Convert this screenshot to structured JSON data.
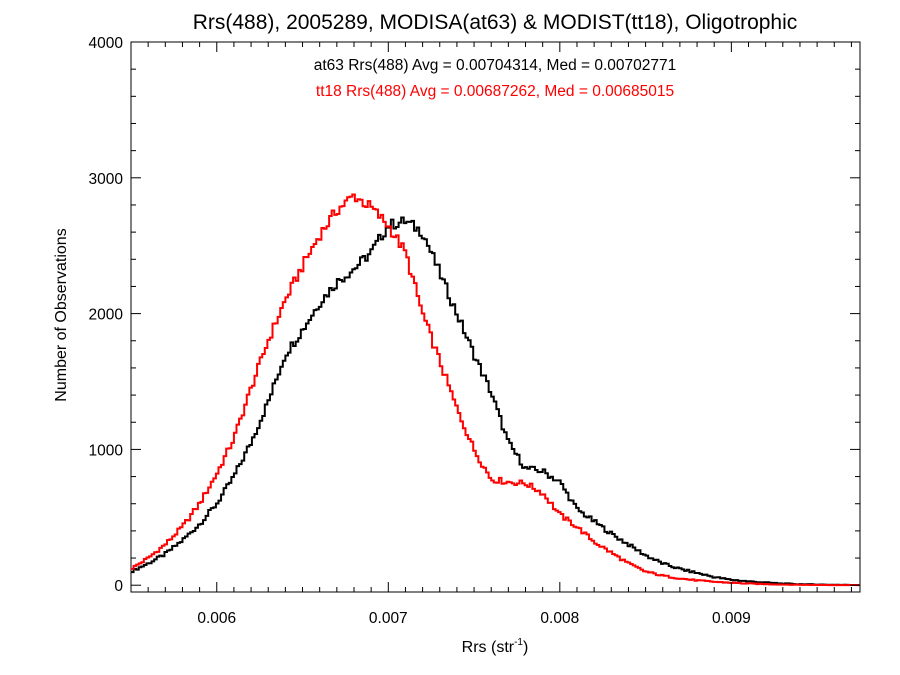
{
  "chart_data": {
    "type": "line",
    "style": "step-histogram",
    "title": "Rrs(488), 2005289, MODISA(at63) & MODIST(tt18), Oligotrophic",
    "xlabel": "Rrs (str",
    "xlabel_sup": "-1",
    "xlabel_end": ")",
    "ylabel": "Number of Observations",
    "xlim": [
      0.0055,
      0.00975
    ],
    "ylim": [
      -50,
      4000
    ],
    "x_ticks": [
      0.006,
      0.007,
      0.008,
      0.009
    ],
    "x_tick_labels": [
      "0.006",
      "0.007",
      "0.008",
      "0.009"
    ],
    "y_ticks": [
      0,
      1000,
      2000,
      3000,
      4000
    ],
    "y_tick_labels": [
      "0",
      "1000",
      "2000",
      "3000",
      "4000"
    ],
    "grid": false,
    "annotations": [
      {
        "text": "at63 Rrs(488) Avg = 0.00704314, Med = 0.00702771",
        "color": "#000000"
      },
      {
        "text": "tt18 Rrs(488) Avg = 0.00687262, Med = 0.00685015",
        "color": "#ff0000"
      }
    ],
    "series": [
      {
        "color": "#000000",
        "points": [
          [
            0.0055,
            100
          ],
          [
            0.0056,
            160
          ],
          [
            0.0057,
            230
          ],
          [
            0.0058,
            330
          ],
          [
            0.0059,
            450
          ],
          [
            0.006,
            600
          ],
          [
            0.0061,
            800
          ],
          [
            0.0062,
            1050
          ],
          [
            0.0063,
            1350
          ],
          [
            0.0064,
            1700
          ],
          [
            0.0065,
            1880
          ],
          [
            0.0066,
            2080
          ],
          [
            0.0067,
            2230
          ],
          [
            0.0068,
            2330
          ],
          [
            0.0069,
            2450
          ],
          [
            0.007,
            2650
          ],
          [
            0.0071,
            2680
          ],
          [
            0.0072,
            2600
          ],
          [
            0.0073,
            2300
          ],
          [
            0.0074,
            2000
          ],
          [
            0.0075,
            1700
          ],
          [
            0.0076,
            1420
          ],
          [
            0.0077,
            1050
          ],
          [
            0.0078,
            860
          ],
          [
            0.0079,
            840
          ],
          [
            0.008,
            760
          ],
          [
            0.0081,
            560
          ],
          [
            0.0082,
            470
          ],
          [
            0.0083,
            380
          ],
          [
            0.0084,
            300
          ],
          [
            0.0085,
            220
          ],
          [
            0.0086,
            160
          ],
          [
            0.0087,
            120
          ],
          [
            0.0088,
            90
          ],
          [
            0.0089,
            60
          ],
          [
            0.009,
            40
          ],
          [
            0.0091,
            28
          ],
          [
            0.0092,
            20
          ],
          [
            0.0093,
            12
          ],
          [
            0.0094,
            8
          ],
          [
            0.0095,
            5
          ],
          [
            0.0096,
            3
          ],
          [
            0.00975,
            2
          ]
        ]
      },
      {
        "color": "#ff0000",
        "points": [
          [
            0.0055,
            120
          ],
          [
            0.0056,
            200
          ],
          [
            0.0057,
            300
          ],
          [
            0.0058,
            430
          ],
          [
            0.0059,
            600
          ],
          [
            0.006,
            820
          ],
          [
            0.0061,
            1080
          ],
          [
            0.0062,
            1450
          ],
          [
            0.0063,
            1800
          ],
          [
            0.0064,
            2100
          ],
          [
            0.0065,
            2350
          ],
          [
            0.0066,
            2580
          ],
          [
            0.0067,
            2760
          ],
          [
            0.0068,
            2870
          ],
          [
            0.0069,
            2780
          ],
          [
            0.007,
            2650
          ],
          [
            0.0071,
            2450
          ],
          [
            0.0072,
            2000
          ],
          [
            0.0073,
            1650
          ],
          [
            0.0074,
            1300
          ],
          [
            0.0075,
            1000
          ],
          [
            0.0076,
            780
          ],
          [
            0.0077,
            760
          ],
          [
            0.0078,
            750
          ],
          [
            0.0079,
            680
          ],
          [
            0.008,
            520
          ],
          [
            0.0081,
            430
          ],
          [
            0.0082,
            320
          ],
          [
            0.0083,
            240
          ],
          [
            0.0084,
            160
          ],
          [
            0.0085,
            100
          ],
          [
            0.0086,
            70
          ],
          [
            0.0087,
            50
          ],
          [
            0.0088,
            35
          ],
          [
            0.0089,
            25
          ],
          [
            0.009,
            18
          ],
          [
            0.0091,
            12
          ],
          [
            0.0092,
            8
          ],
          [
            0.0093,
            5
          ],
          [
            0.0094,
            3
          ],
          [
            0.0095,
            2
          ],
          [
            0.0096,
            1
          ],
          [
            0.00975,
            1
          ]
        ]
      }
    ]
  }
}
